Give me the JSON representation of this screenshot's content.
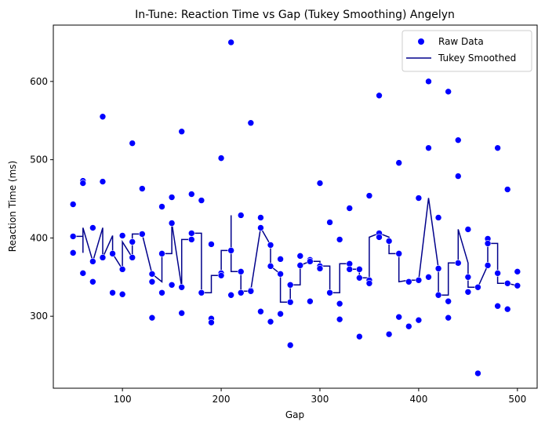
{
  "chart_data": {
    "type": "scatter",
    "title": "In-Tune: Reaction Time vs Gap (Tukey Smoothing) Angelyn",
    "xlabel": "Gap",
    "ylabel": "Reaction Time (ms)",
    "xlim": [
      30,
      520
    ],
    "ylim": [
      208,
      672
    ],
    "xticks": [
      100,
      200,
      300,
      400,
      500
    ],
    "yticks": [
      300,
      400,
      500,
      600
    ],
    "grid": false,
    "legend": {
      "placement": "top-right",
      "entries": [
        {
          "label": "Raw Data",
          "marker": "circle"
        },
        {
          "label": "Tukey Smoothed",
          "marker": "line"
        }
      ]
    },
    "colors": {
      "raw": "#0000ff",
      "smoothed": "#00008b"
    },
    "series": [
      {
        "name": "Raw Data",
        "type": "scatter",
        "points": [
          [
            50,
            443
          ],
          [
            50,
            402
          ],
          [
            50,
            381
          ],
          [
            60,
            473
          ],
          [
            60,
            470
          ],
          [
            60,
            355
          ],
          [
            70,
            413
          ],
          [
            70,
            370
          ],
          [
            70,
            344
          ],
          [
            80,
            555
          ],
          [
            80,
            472
          ],
          [
            80,
            375
          ],
          [
            90,
            380
          ],
          [
            90,
            330
          ],
          [
            100,
            403
          ],
          [
            100,
            360
          ],
          [
            100,
            328
          ],
          [
            110,
            521
          ],
          [
            110,
            395
          ],
          [
            110,
            375
          ],
          [
            120,
            463
          ],
          [
            120,
            405
          ],
          [
            130,
            354
          ],
          [
            130,
            344
          ],
          [
            130,
            298
          ],
          [
            140,
            440
          ],
          [
            140,
            380
          ],
          [
            140,
            330
          ],
          [
            150,
            452
          ],
          [
            150,
            419
          ],
          [
            150,
            340
          ],
          [
            160,
            536
          ],
          [
            160,
            337
          ],
          [
            160,
            304
          ],
          [
            170,
            456
          ],
          [
            170,
            406
          ],
          [
            170,
            398
          ],
          [
            180,
            448
          ],
          [
            180,
            330
          ],
          [
            190,
            392
          ],
          [
            190,
            297
          ],
          [
            190,
            292
          ],
          [
            200,
            502
          ],
          [
            200,
            355
          ],
          [
            200,
            352
          ],
          [
            210,
            650
          ],
          [
            210,
            384
          ],
          [
            210,
            327
          ],
          [
            220,
            429
          ],
          [
            220,
            357
          ],
          [
            220,
            330
          ],
          [
            230,
            547
          ],
          [
            230,
            333
          ],
          [
            230,
            332
          ],
          [
            240,
            426
          ],
          [
            240,
            413
          ],
          [
            240,
            306
          ],
          [
            250,
            391
          ],
          [
            250,
            364
          ],
          [
            250,
            293
          ],
          [
            260,
            373
          ],
          [
            260,
            354
          ],
          [
            260,
            303
          ],
          [
            270,
            340
          ],
          [
            270,
            318
          ],
          [
            270,
            263
          ],
          [
            280,
            377
          ],
          [
            280,
            365
          ],
          [
            290,
            372
          ],
          [
            290,
            370
          ],
          [
            290,
            319
          ],
          [
            300,
            470
          ],
          [
            300,
            364
          ],
          [
            300,
            361
          ],
          [
            310,
            420
          ],
          [
            310,
            330
          ],
          [
            320,
            398
          ],
          [
            320,
            316
          ],
          [
            320,
            296
          ],
          [
            330,
            438
          ],
          [
            330,
            367
          ],
          [
            330,
            360
          ],
          [
            340,
            360
          ],
          [
            340,
            349
          ],
          [
            340,
            274
          ],
          [
            350,
            454
          ],
          [
            350,
            346
          ],
          [
            350,
            342
          ],
          [
            360,
            582
          ],
          [
            360,
            406
          ],
          [
            360,
            401
          ],
          [
            370,
            396
          ],
          [
            370,
            277
          ],
          [
            380,
            496
          ],
          [
            380,
            380
          ],
          [
            380,
            299
          ],
          [
            390,
            344
          ],
          [
            390,
            287
          ],
          [
            400,
            451
          ],
          [
            400,
            346
          ],
          [
            400,
            295
          ],
          [
            410,
            600
          ],
          [
            410,
            515
          ],
          [
            410,
            350
          ],
          [
            420,
            426
          ],
          [
            420,
            361
          ],
          [
            420,
            327
          ],
          [
            430,
            587
          ],
          [
            430,
            319
          ],
          [
            430,
            298
          ],
          [
            440,
            525
          ],
          [
            440,
            479
          ],
          [
            440,
            368
          ],
          [
            450,
            411
          ],
          [
            450,
            350
          ],
          [
            450,
            331
          ],
          [
            460,
            337
          ],
          [
            460,
            227
          ],
          [
            470,
            399
          ],
          [
            470,
            393
          ],
          [
            470,
            365
          ],
          [
            480,
            515
          ],
          [
            480,
            355
          ],
          [
            480,
            313
          ],
          [
            490,
            462
          ],
          [
            490,
            342
          ],
          [
            490,
            309
          ],
          [
            500,
            357
          ],
          [
            500,
            339
          ]
        ]
      },
      {
        "name": "Tukey Smoothed",
        "type": "line",
        "points": [
          [
            50,
            402
          ],
          [
            60,
            402
          ],
          [
            60,
            381
          ],
          [
            60,
            413
          ],
          [
            70,
            370
          ],
          [
            70,
            370
          ],
          [
            80,
            413
          ],
          [
            80,
            375
          ],
          [
            90,
            403
          ],
          [
            90,
            380
          ],
          [
            100,
            360
          ],
          [
            100,
            395
          ],
          [
            110,
            375
          ],
          [
            110,
            405
          ],
          [
            120,
            405
          ],
          [
            130,
            354
          ],
          [
            140,
            344
          ],
          [
            140,
            380
          ],
          [
            150,
            380
          ],
          [
            150,
            419
          ],
          [
            160,
            337
          ],
          [
            160,
            398
          ],
          [
            170,
            398
          ],
          [
            170,
            406
          ],
          [
            180,
            406
          ],
          [
            180,
            330
          ],
          [
            190,
            330
          ],
          [
            190,
            352
          ],
          [
            200,
            352
          ],
          [
            200,
            384
          ],
          [
            210,
            384
          ],
          [
            210,
            429
          ],
          [
            210,
            357
          ],
          [
            220,
            357
          ],
          [
            220,
            332
          ],
          [
            230,
            332
          ],
          [
            230,
            333
          ],
          [
            240,
            413
          ],
          [
            250,
            391
          ],
          [
            250,
            364
          ],
          [
            260,
            354
          ],
          [
            260,
            318
          ],
          [
            270,
            318
          ],
          [
            270,
            340
          ],
          [
            280,
            340
          ],
          [
            280,
            365
          ],
          [
            290,
            370
          ],
          [
            300,
            370
          ],
          [
            300,
            364
          ],
          [
            310,
            364
          ],
          [
            310,
            330
          ],
          [
            320,
            330
          ],
          [
            320,
            367
          ],
          [
            330,
            367
          ],
          [
            330,
            360
          ],
          [
            340,
            360
          ],
          [
            340,
            349
          ],
          [
            350,
            349
          ],
          [
            350,
            401
          ],
          [
            360,
            406
          ],
          [
            370,
            401
          ],
          [
            370,
            380
          ],
          [
            380,
            380
          ],
          [
            380,
            344
          ],
          [
            390,
            346
          ],
          [
            400,
            346
          ],
          [
            410,
            451
          ],
          [
            420,
            361
          ],
          [
            420,
            327
          ],
          [
            430,
            327
          ],
          [
            430,
            368
          ],
          [
            440,
            368
          ],
          [
            440,
            411
          ],
          [
            450,
            368
          ],
          [
            450,
            337
          ],
          [
            460,
            337
          ],
          [
            470,
            365
          ],
          [
            470,
            393
          ],
          [
            480,
            393
          ],
          [
            480,
            342
          ],
          [
            490,
            342
          ],
          [
            500,
            339
          ]
        ]
      }
    ]
  }
}
